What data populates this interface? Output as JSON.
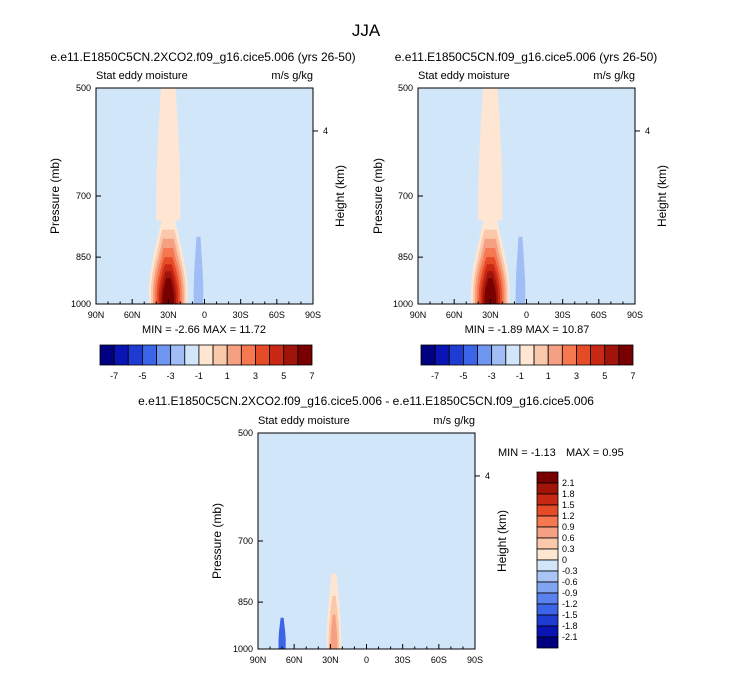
{
  "figure": {
    "title": "JJA"
  },
  "chart_data": [
    {
      "type": "heatmap",
      "panel": "top-left",
      "case_title": "e.e11.E1850C5CN.2XCO2.f09_g16.cice5.006 (yrs 26-50)",
      "left_label": "Stat eddy moisture",
      "right_label": "m/s g/kg",
      "xlabel": "",
      "ylabel": "Pressure (mb)",
      "y2label": "Height (km)",
      "x_ticks": [
        "90N",
        "60N",
        "30N",
        "0",
        "30S",
        "60S",
        "90S"
      ],
      "y_ticks": [
        "500",
        "700",
        "850",
        "1000"
      ],
      "y2_ticks": [
        "4"
      ],
      "stats": "MIN = -2.66  MAX = 11.72",
      "min": -2.66,
      "max": 11.72,
      "colorbar_labels": [
        "-7",
        "-5",
        "-3",
        "-1",
        "1",
        "3",
        "5",
        "7"
      ],
      "features": [
        {
          "kind": "positive-core",
          "lat": 30,
          "p_top": 760,
          "p_bottom": 1000,
          "peak": 11.72
        },
        {
          "kind": "positive-tongue",
          "lat": 30,
          "p_top": 500,
          "p_bottom": 760,
          "level": 1
        },
        {
          "kind": "negative-patch",
          "lat": 5,
          "p_top": 800,
          "p_bottom": 1000,
          "level": -1
        }
      ]
    },
    {
      "type": "heatmap",
      "panel": "top-right",
      "case_title": "e.e11.E1850C5CN.f09_g16.cice5.006 (yrs 26-50)",
      "left_label": "Stat eddy moisture",
      "right_label": "m/s g/kg",
      "xlabel": "",
      "ylabel": "Pressure (mb)",
      "y2label": "Height (km)",
      "x_ticks": [
        "90N",
        "60N",
        "30N",
        "0",
        "30S",
        "60S",
        "90S"
      ],
      "y_ticks": [
        "500",
        "700",
        "850",
        "1000"
      ],
      "y2_ticks": [
        "4"
      ],
      "stats": "MIN = -1.89  MAX = 10.87",
      "min": -1.89,
      "max": 10.87,
      "colorbar_labels": [
        "-7",
        "-5",
        "-3",
        "-1",
        "1",
        "3",
        "5",
        "7"
      ],
      "features": [
        {
          "kind": "positive-core",
          "lat": 30,
          "p_top": 760,
          "p_bottom": 1000,
          "peak": 10.87
        },
        {
          "kind": "positive-tongue",
          "lat": 30,
          "p_top": 500,
          "p_bottom": 760,
          "level": 1
        },
        {
          "kind": "negative-patch",
          "lat": 5,
          "p_top": 800,
          "p_bottom": 1000,
          "level": -1
        }
      ]
    },
    {
      "type": "heatmap",
      "panel": "bottom-difference",
      "case_title": "e.e11.E1850C5CN.2XCO2.f09_g16.cice5.006 - e.e11.E1850C5CN.f09_g16.cice5.006",
      "left_label": "Stat eddy moisture",
      "right_label": "m/s g/kg",
      "xlabel": "",
      "ylabel": "Pressure (mb)",
      "y2label": "Height (km)",
      "x_ticks": [
        "90N",
        "60N",
        "30N",
        "0",
        "30S",
        "60S",
        "90S"
      ],
      "y_ticks": [
        "500",
        "700",
        "850",
        "1000"
      ],
      "y2_ticks": [
        "4"
      ],
      "stats_min_label": "MIN = -1.13",
      "stats_max_label": "MAX =   0.95",
      "min": -1.13,
      "max": 0.95,
      "colorbar_labels": [
        "2.1",
        "1.8",
        "1.5",
        "1.2",
        "0.9",
        "0.6",
        "0.3",
        "0",
        "-0.3",
        "-0.6",
        "-0.9",
        "-1.2",
        "-1.5",
        "-1.8",
        "-2.1"
      ],
      "features": [
        {
          "kind": "positive-core",
          "lat": 27,
          "p_top": 780,
          "p_bottom": 1000,
          "peak": 0.95
        },
        {
          "kind": "negative-patch",
          "lat": 70,
          "p_top": 900,
          "p_bottom": 1000,
          "level": -1.13
        }
      ]
    }
  ],
  "colors": {
    "top_scale": [
      "#000080",
      "#0a14b4",
      "#1e3cd2",
      "#3c64e6",
      "#6e96f0",
      "#a0bef5",
      "#d2e6fa",
      "#ffe6d2",
      "#fac8aa",
      "#f5a082",
      "#f57850",
      "#e64b28",
      "#c82814",
      "#a0140a",
      "#780000"
    ],
    "diff_scale": [
      "#000080",
      "#0a14b4",
      "#1e3cd2",
      "#3c64e6",
      "#5a82ee",
      "#82a5f2",
      "#aac4f6",
      "#d2e6fa",
      "#ffe6d2",
      "#fac8aa",
      "#f5a082",
      "#f57850",
      "#e64b28",
      "#c82814",
      "#a0140a",
      "#780000"
    ],
    "background": "#d2e6fa",
    "light_positive": "#ffe6d2"
  }
}
